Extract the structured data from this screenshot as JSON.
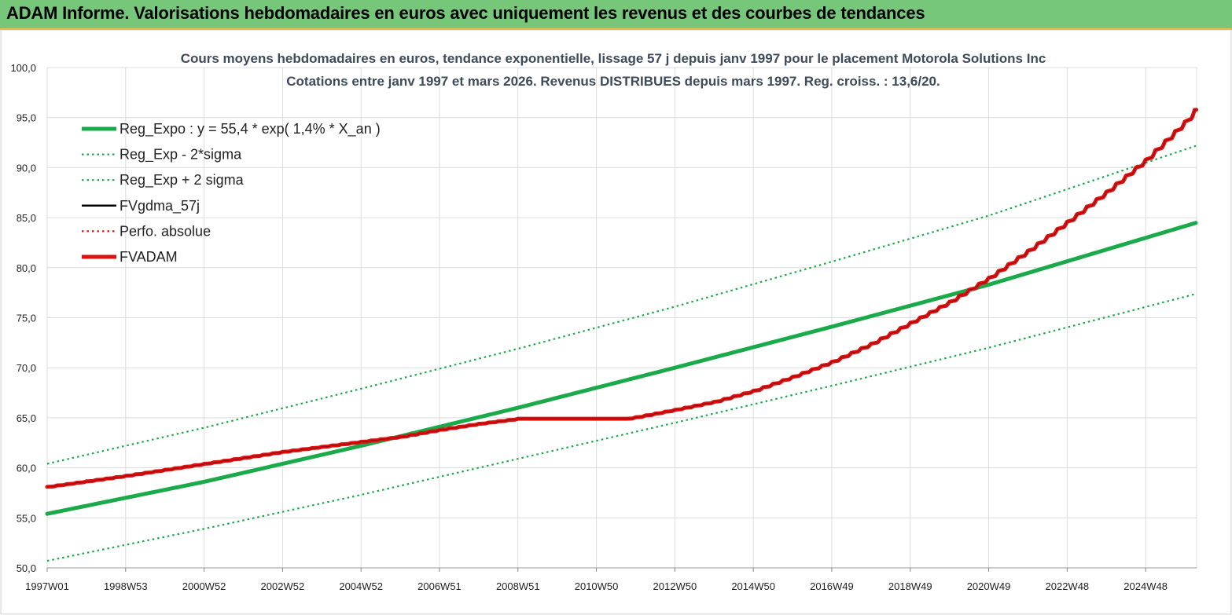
{
  "banner": {
    "title": "ADAM Informe. Valorisations hebdomadaires en euros avec uniquement les revenus et des courbes de tendances"
  },
  "chart_data": {
    "type": "line",
    "title": "Cours moyens hebdomadaires en euros, tendance exponentielle, lissage 57 j depuis janv 1997 pour le placement Motorola Solutions Inc",
    "subtitle": "Cotations entre janv 1997 et mars 2026. Revenus DISTRIBUES depuis mars 1997. Reg. croiss. : 13,6/20.",
    "xlabel": "",
    "ylabel": "",
    "x_ticks": [
      {
        "x": 1997.0,
        "label": "1997W01"
      },
      {
        "x": 1999.0,
        "label": "1998W53"
      },
      {
        "x": 2001.0,
        "label": "2000W52"
      },
      {
        "x": 2003.0,
        "label": "2002W52"
      },
      {
        "x": 2005.0,
        "label": "2004W52"
      },
      {
        "x": 2007.0,
        "label": "2006W51"
      },
      {
        "x": 2009.0,
        "label": "2008W51"
      },
      {
        "x": 2011.0,
        "label": "2010W50"
      },
      {
        "x": 2013.0,
        "label": "2012W50"
      },
      {
        "x": 2015.0,
        "label": "2014W50"
      },
      {
        "x": 2017.0,
        "label": "2016W49"
      },
      {
        "x": 2019.0,
        "label": "2018W49"
      },
      {
        "x": 2021.0,
        "label": "2020W49"
      },
      {
        "x": 2023.0,
        "label": "2022W48"
      },
      {
        "x": 2025.0,
        "label": "2024W48"
      }
    ],
    "xlim": [
      1997.0,
      2026.3
    ],
    "y_ticks": [
      "50,0",
      "55,0",
      "60,0",
      "65,0",
      "70,0",
      "75,0",
      "80,0",
      "85,0",
      "90,0",
      "95,0",
      "100,0"
    ],
    "ylim": [
      50,
      100
    ],
    "grid": true,
    "legend_position": "top-left",
    "legend": [
      {
        "label": "Reg_Expo : y = 55,4 * exp( 1,4% *  X_an )",
        "color": "#1aaa4a",
        "style": "solid-thick"
      },
      {
        "label": "Reg_Exp - 2*sigma",
        "color": "#1aaa4a",
        "style": "dotted"
      },
      {
        "label": "Reg_Exp + 2 sigma",
        "color": "#1aaa4a",
        "style": "dotted"
      },
      {
        "label": "FVgdma_57j",
        "color": "#000000",
        "style": "solid"
      },
      {
        "label": "Perfo. absolue",
        "color": "#e01010",
        "style": "dotted"
      },
      {
        "label": "FVADAM",
        "color": "#e01010",
        "style": "solid-thick"
      }
    ],
    "series": [
      {
        "name": "Reg_Expo : y = 55,4 * exp( 1,4% *  X_an )",
        "x": [
          1997.0,
          2001.0,
          2005.0,
          2009.0,
          2013.0,
          2017.0,
          2021.0,
          2026.3
        ],
        "values": [
          55.4,
          58.6,
          62.2,
          66.0,
          70.0,
          74.1,
          78.3,
          84.5
        ]
      },
      {
        "name": "Reg_Exp - 2*sigma",
        "x": [
          1997.0,
          2001.0,
          2005.0,
          2009.0,
          2013.0,
          2017.0,
          2021.0,
          2026.3
        ],
        "values": [
          50.7,
          53.9,
          57.3,
          60.9,
          64.5,
          68.2,
          72.0,
          77.4
        ]
      },
      {
        "name": "Reg_Exp + 2 sigma",
        "x": [
          1997.0,
          2001.0,
          2005.0,
          2009.0,
          2013.0,
          2017.0,
          2021.0,
          2026.3
        ],
        "values": [
          60.4,
          64.0,
          67.9,
          71.9,
          76.1,
          80.6,
          85.2,
          92.2
        ]
      },
      {
        "name": "FVADAM",
        "x": [
          1997.0,
          1999.0,
          2001.0,
          2003.0,
          2005.0,
          2006.0,
          2007.0,
          2008.0,
          2009.0,
          2010.0,
          2011.0,
          2011.8,
          2013.0,
          2014.0,
          2015.0,
          2016.0,
          2017.0,
          2018.0,
          2019.0,
          2020.0,
          2021.0,
          2022.0,
          2023.0,
          2024.0,
          2025.0,
          2026.0,
          2026.3
        ],
        "values": [
          58.1,
          59.2,
          60.4,
          61.6,
          62.6,
          63.1,
          63.8,
          64.4,
          64.9,
          64.9,
          64.9,
          64.9,
          65.8,
          66.6,
          67.7,
          69.1,
          70.6,
          72.4,
          74.5,
          76.6,
          79.0,
          81.7,
          84.6,
          87.6,
          90.8,
          94.6,
          96.0
        ]
      }
    ]
  }
}
